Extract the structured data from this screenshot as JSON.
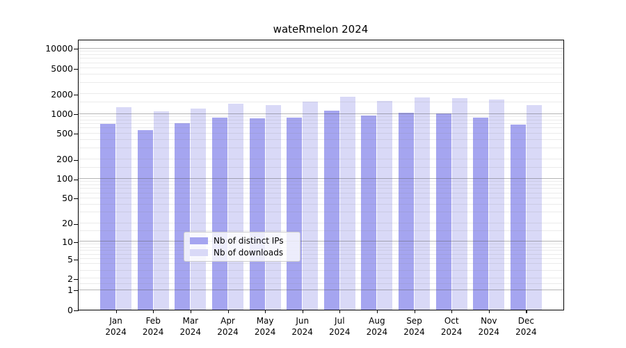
{
  "title": "wateRmelon 2024",
  "colors": {
    "distinct_ips_bar": "#a5a5f0",
    "downloads_bar": "#d9d9f7",
    "major_gridline": "#b0b0b0",
    "minor_gridline": "#ececec",
    "axis": "#000000"
  },
  "y_axis": {
    "tick_labels": [
      "10000",
      "5000",
      "2000",
      "1000",
      "500",
      "200",
      "100",
      "50",
      "20",
      "10",
      "5",
      "2",
      "1",
      "0"
    ],
    "tick_values": [
      10000,
      5000,
      2000,
      1000,
      500,
      200,
      100,
      50,
      20,
      10,
      5,
      2,
      1,
      0
    ]
  },
  "x_axis": {
    "months": [
      "Jan",
      "Feb",
      "Mar",
      "Apr",
      "May",
      "Jun",
      "Jul",
      "Aug",
      "Sep",
      "Oct",
      "Nov",
      "Dec"
    ],
    "year": "2024"
  },
  "legend": {
    "items": [
      {
        "label": "Nb of distinct IPs",
        "color": "#a5a5f0"
      },
      {
        "label": "Nb of downloads",
        "color": "#d9d9f7"
      }
    ]
  },
  "chart_data": {
    "type": "bar",
    "title": "wateRmelon 2024",
    "categories": [
      "Jan 2024",
      "Feb 2024",
      "Mar 2024",
      "Apr 2024",
      "May 2024",
      "Jun 2024",
      "Jul 2024",
      "Aug 2024",
      "Sep 2024",
      "Oct 2024",
      "Nov 2024",
      "Dec 2024"
    ],
    "series": [
      {
        "name": "Nb of distinct IPs",
        "color": "#a5a5f0",
        "values": [
          700,
          560,
          720,
          880,
          845,
          885,
          1110,
          940,
          1045,
          1015,
          880,
          690
        ]
      },
      {
        "name": "Nb of downloads",
        "color": "#d9d9f7",
        "values": [
          1270,
          1080,
          1210,
          1440,
          1370,
          1525,
          1835,
          1565,
          1790,
          1750,
          1665,
          1350
        ]
      }
    ],
    "ylabel": "",
    "xlabel": "",
    "yscale": "log-like (log10(1+v), zero at baseline)",
    "yticks": [
      10000,
      5000,
      2000,
      1000,
      500,
      200,
      100,
      50,
      20,
      10,
      5,
      2,
      1,
      0
    ],
    "ylim": [
      0,
      13000
    ],
    "grid": "horizontal; dark lines at powers of 10, faint minor log lines",
    "legend_position": "lower center"
  }
}
